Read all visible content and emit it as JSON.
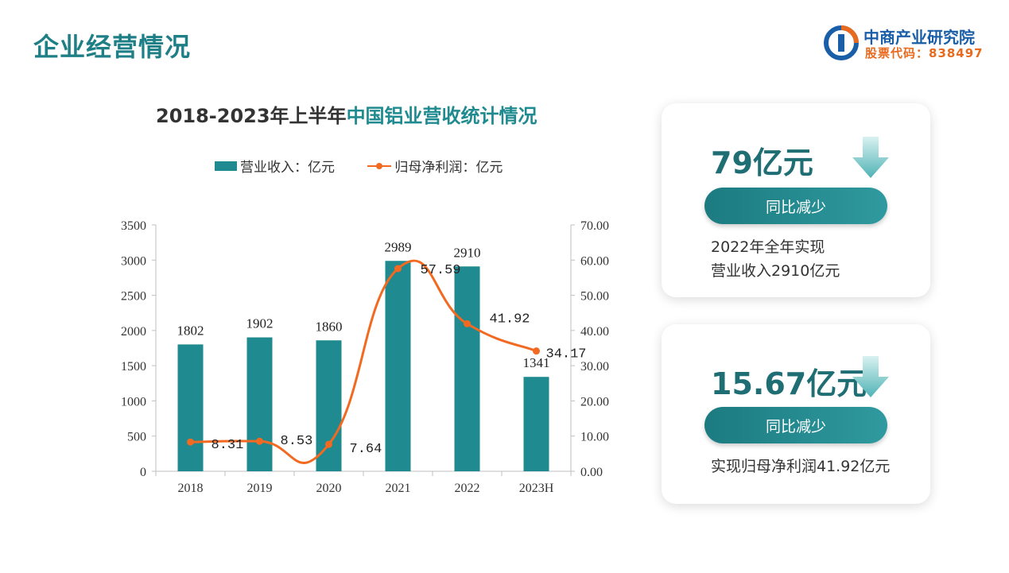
{
  "header": {
    "title": "企业经营情况",
    "logo_name": "中商产业研究院",
    "logo_code": "股票代码：838497"
  },
  "chart": {
    "title_plain": "2018-2023年上半年",
    "title_highlight": "中国铝业营收统计情况"
  },
  "colors": {
    "bar": "#1f8a8f",
    "line": "#f26a21",
    "accent": "#1f7f86"
  },
  "chart_data": {
    "type": "bar",
    "title": "2018-2023年上半年中国铝业营收统计情况",
    "categories": [
      "2018",
      "2019",
      "2020",
      "2021",
      "2022",
      "2023H"
    ],
    "series": [
      {
        "name": "营业收入：亿元",
        "type": "bar",
        "axis": "left",
        "values": [
          1802,
          1902,
          1860,
          2989,
          2910,
          1341
        ],
        "labels": [
          "1802",
          "1902",
          "1860",
          "2989",
          "2910",
          "1341"
        ]
      },
      {
        "name": "归母净利润：亿元",
        "type": "line",
        "axis": "right",
        "values": [
          8.31,
          8.53,
          7.64,
          57.59,
          41.92,
          34.17
        ],
        "labels": [
          "8.31",
          "8.53",
          "7.64",
          "57.59",
          "41.92",
          "34.17"
        ]
      }
    ],
    "y_left": {
      "min": 0,
      "max": 3500,
      "ticks": [
        "0",
        "500",
        "1000",
        "1500",
        "2000",
        "2500",
        "3000",
        "3500"
      ]
    },
    "y_right": {
      "min": 0,
      "max": 70,
      "ticks": [
        "0.00",
        "10.00",
        "20.00",
        "30.00",
        "40.00",
        "50.00",
        "60.00",
        "70.00"
      ]
    },
    "legend_position": "top",
    "grid": false
  },
  "cards": [
    {
      "value": "79亿元",
      "pill": "同比减少",
      "desc": [
        "2022年全年实现",
        "营业收入2910亿元"
      ]
    },
    {
      "value": "15.67亿元",
      "pill": "同比减少",
      "desc": [
        "实现归母净利润41.92亿元"
      ]
    }
  ]
}
